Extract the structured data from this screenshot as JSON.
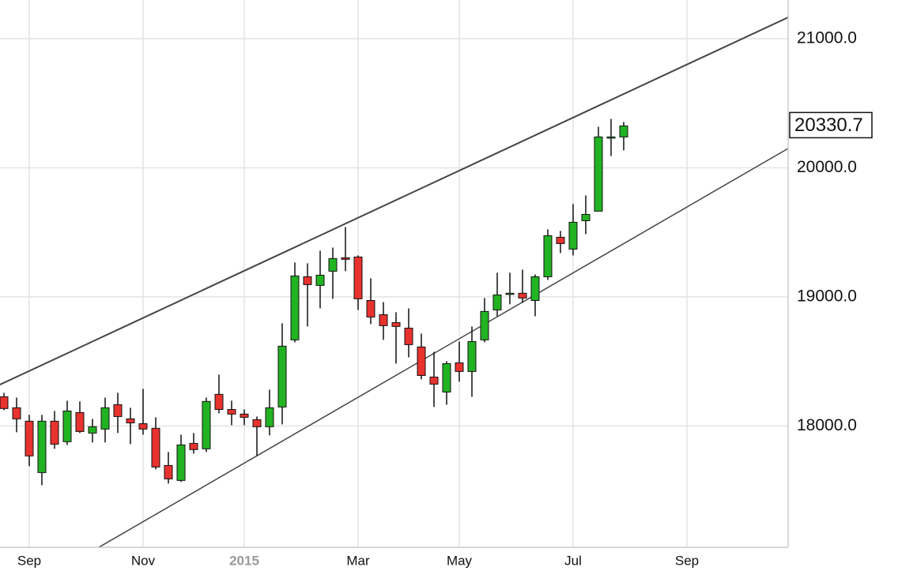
{
  "chart_data": {
    "type": "candlestick",
    "categories": [
      null,
      null,
      "Sep",
      null,
      null,
      null,
      null,
      null,
      null,
      null,
      null,
      "Nov",
      null,
      null,
      null,
      null,
      null,
      null,
      null,
      "2015",
      null,
      null,
      null,
      null,
      null,
      null,
      null,
      null,
      "Mar",
      null,
      null,
      null,
      null,
      null,
      null,
      null,
      "May",
      null,
      null,
      null,
      null,
      null,
      null,
      null,
      null,
      "Jul",
      null,
      null,
      null,
      null,
      null,
      null,
      null,
      null,
      "Sep",
      null,
      null,
      null,
      null,
      null,
      null,
      null
    ],
    "open": [
      18226,
      18141,
      18037,
      17639,
      18037,
      17878,
      18104,
      17945,
      17976,
      18165,
      18055,
      18018,
      17982,
      17694,
      17578,
      17865,
      17823,
      18245,
      18128,
      18092,
      18049,
      17994,
      18147,
      18667,
      19156,
      19089,
      19199,
      19303,
      19309,
      18972,
      18862,
      18801,
      18758,
      18612,
      18379,
      18263,
      18489,
      18422,
      18667,
      18899,
      19021,
      19028,
      18972,
      19156,
      19462,
      19370,
      19590,
      19664,
      20233,
      20239,
      null,
      null,
      null,
      null,
      null,
      null,
      null,
      null,
      null,
      null,
      null,
      null
    ],
    "high": [
      18257,
      18220,
      18086,
      18086,
      18116,
      18196,
      18190,
      18055,
      18220,
      18257,
      18141,
      18287,
      18067,
      17798,
      17933,
      17945,
      18220,
      18398,
      18196,
      18128,
      18073,
      18281,
      18795,
      19266,
      19260,
      19358,
      19382,
      19541,
      19321,
      19144,
      18960,
      18881,
      18911,
      18716,
      18575,
      18502,
      18654,
      18771,
      18991,
      19187,
      19187,
      19211,
      19174,
      19523,
      19511,
      19719,
      19786,
      20318,
      20379,
      20355,
      null,
      null,
      null,
      null,
      null,
      null,
      null,
      null,
      null,
      null,
      null,
      null
    ],
    "low": [
      18122,
      17951,
      17688,
      17541,
      17823,
      17853,
      17945,
      17872,
      17872,
      17945,
      17859,
      17933,
      17664,
      17554,
      17566,
      17786,
      17798,
      18098,
      18006,
      18006,
      17768,
      17927,
      18012,
      18648,
      18771,
      18911,
      18985,
      19199,
      18899,
      18789,
      18667,
      18483,
      18532,
      18361,
      18147,
      18165,
      18343,
      18226,
      18648,
      18850,
      18942,
      18954,
      18850,
      19131,
      19339,
      19321,
      19486,
      19664,
      20092,
      20135,
      null,
      null,
      null,
      null,
      null,
      null,
      null,
      null,
      null,
      null,
      null,
      null
    ],
    "close": [
      18135,
      18055,
      17768,
      18037,
      17859,
      18116,
      17957,
      17994,
      18141,
      18073,
      18024,
      17976,
      17682,
      17590,
      17853,
      17817,
      18190,
      18128,
      18092,
      18067,
      17994,
      18141,
      18618,
      19162,
      19095,
      19168,
      19297,
      19291,
      18985,
      18844,
      18777,
      18771,
      18630,
      18391,
      18324,
      18483,
      18422,
      18654,
      18887,
      19015,
      19028,
      18991,
      19156,
      19474,
      19413,
      19578,
      19639,
      20239,
      20239,
      20324,
      null,
      null,
      null,
      null,
      null,
      null,
      null,
      null,
      null,
      null,
      null,
      null
    ],
    "up_color": "#22b322",
    "down_color": "#e8322e",
    "ylim": [
      17060,
      21300
    ],
    "yticks": [
      {
        "value": 18000,
        "label": "18000.0"
      },
      {
        "value": 19000,
        "label": "19000.0"
      },
      {
        "value": 20000,
        "label": "20000.0"
      },
      {
        "value": 21000,
        "label": "21000.0"
      }
    ],
    "grid": true,
    "last_price": 20330.7
  }
}
